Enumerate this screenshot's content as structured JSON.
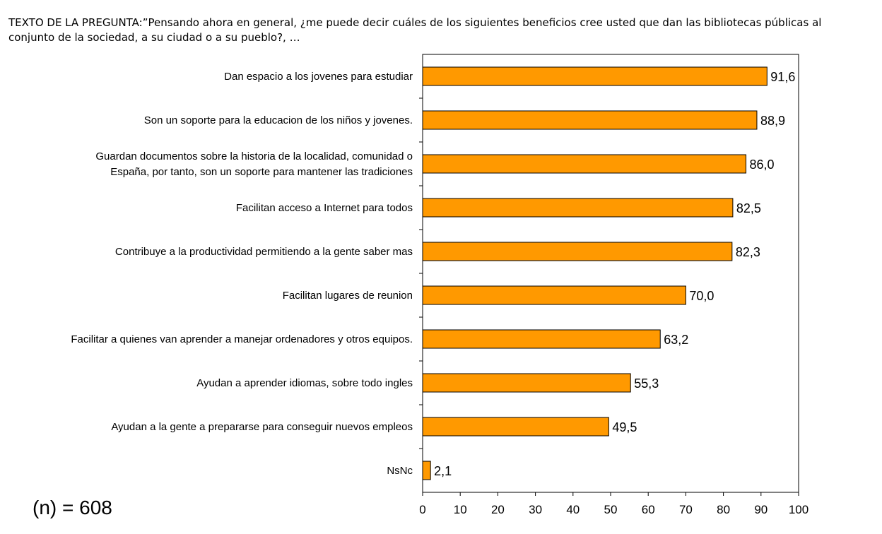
{
  "question": "TEXTO DE LA PREGUNTA:”Pensando ahora en general, ¿me puede decir cuáles de los siguientes beneficios cree usted que dan las bibliotecas públicas al conjunto de la sociedad, a su ciudad o a su pueblo?, …",
  "sample_size": "(n) = 608",
  "colors": {
    "bar": "#ff9900",
    "bar_stroke": "#000000"
  },
  "chart_data": {
    "type": "bar",
    "orientation": "horizontal",
    "categories": [
      [
        "Dan espacio a los jovenes para estudiar"
      ],
      [
        "Son un soporte para la educacion de los niños y jovenes."
      ],
      [
        "Guardan documentos sobre la historia de la localidad, comunidad o",
        "España, por tanto, son un soporte para mantener las tradiciones"
      ],
      [
        "Facilitan acceso a Internet para todos"
      ],
      [
        "Contribuye a la productividad permitiendo a la gente saber mas"
      ],
      [
        "Facilitan lugares de reunion"
      ],
      [
        "Facilitar a quienes van aprender a manejar ordenadores y otros equipos."
      ],
      [
        "Ayudan a aprender idiomas, sobre todo ingles"
      ],
      [
        "Ayudan a la gente a prepararse para conseguir nuevos empleos"
      ],
      [
        "NsNc"
      ]
    ],
    "values": [
      91.6,
      88.9,
      86.0,
      82.5,
      82.3,
      70.0,
      63.2,
      55.3,
      49.5,
      2.1
    ],
    "value_labels": [
      "91,6",
      "88,9",
      "86,0",
      "82,5",
      "82,3",
      "70,0",
      "63,2",
      "55,3",
      "49,5",
      "2,1"
    ],
    "xlim": [
      0,
      100
    ],
    "xticks": [
      0,
      10,
      20,
      30,
      40,
      50,
      60,
      70,
      80,
      90,
      100
    ],
    "grid": false,
    "title": "",
    "xlabel": "",
    "ylabel": ""
  }
}
